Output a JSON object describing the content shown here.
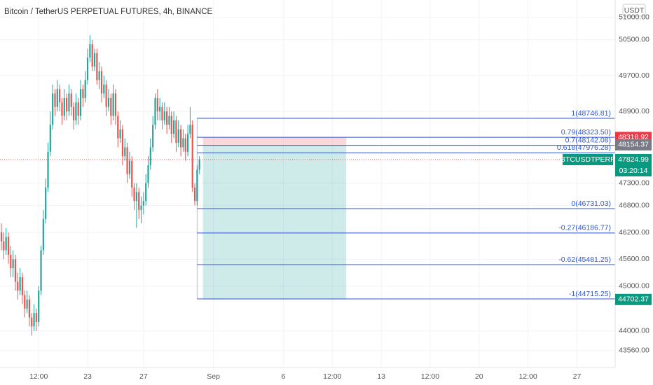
{
  "chart_data": {
    "type": "candlestick",
    "title": "Bitcoin / TetherUS PERPETUAL FUTURES, 4h, BINANCE",
    "currency": "USDT",
    "up_color": "#26a69a",
    "down_color": "#ef5350",
    "x": [
      0,
      1,
      2,
      3,
      4,
      5,
      6,
      7,
      8,
      9,
      10,
      11,
      12,
      13,
      14,
      15,
      16,
      17,
      18,
      19,
      20,
      21,
      22,
      23,
      24,
      25,
      26,
      27,
      28,
      29,
      30,
      31,
      32,
      33,
      34,
      35,
      36,
      37,
      38,
      39,
      40,
      41,
      42,
      43,
      44,
      45,
      46,
      47,
      48,
      49,
      50,
      51,
      52,
      53,
      54,
      55,
      56,
      57,
      58,
      59,
      60,
      61,
      62,
      63,
      64,
      65,
      66,
      67,
      68,
      69,
      70,
      71,
      72,
      73,
      74,
      75,
      76,
      77,
      78,
      79,
      80,
      81,
      82,
      83,
      84,
      85
    ],
    "open": [
      46200,
      46000,
      45800,
      46100,
      45700,
      45400,
      45600,
      45100,
      44900,
      45200,
      44800,
      44500,
      44700,
      44300,
      44100,
      44400,
      44200,
      44900,
      45800,
      46500,
      47200,
      48000,
      48600,
      49300,
      49000,
      49400,
      49100,
      48800,
      49200,
      48900,
      49300,
      49000,
      48700,
      49100,
      48800,
      49400,
      49200,
      49600,
      50100,
      50400,
      49900,
      50200,
      49600,
      49800,
      49300,
      49500,
      49000,
      49200,
      48800,
      49300,
      48800,
      48300,
      48500,
      47900,
      48100,
      47500,
      47800,
      47200,
      46900,
      47100,
      46700,
      46800,
      46900,
      47300,
      47700,
      48100,
      48600,
      49200,
      48900,
      49000,
      48700,
      48900,
      48600,
      48800,
      48400,
      48700,
      48200,
      48500,
      48100,
      48300,
      48000,
      48400,
      48600,
      47200,
      46900,
      47600
    ],
    "high": [
      46400,
      46200,
      46300,
      46200,
      45900,
      45800,
      45700,
      45300,
      45400,
      45300,
      44900,
      44900,
      44800,
      44400,
      44600,
      44500,
      45000,
      45900,
      46700,
      47400,
      48200,
      48900,
      49500,
      49400,
      49600,
      49500,
      49200,
      49400,
      49300,
      49500,
      49400,
      49100,
      49300,
      49200,
      49600,
      49500,
      49800,
      50300,
      50600,
      50500,
      50300,
      50300,
      50000,
      49900,
      49700,
      49600,
      49400,
      49300,
      49500,
      49400,
      48900,
      48700,
      48600,
      48300,
      48200,
      48000,
      47900,
      47300,
      47300,
      47200,
      47000,
      47100,
      47500,
      47900,
      48300,
      48800,
      49300,
      49400,
      49200,
      49100,
      49100,
      49000,
      49000,
      48900,
      48900,
      48800,
      48700,
      48600,
      48500,
      48400,
      48600,
      49000,
      48700,
      47300,
      47700,
      47900
    ],
    "low": [
      45800,
      45600,
      45700,
      45500,
      45200,
      45200,
      44900,
      44700,
      44800,
      44600,
      44300,
      44400,
      44100,
      43900,
      44000,
      44000,
      44100,
      44800,
      45700,
      46400,
      47100,
      47900,
      48500,
      48800,
      48900,
      48900,
      48600,
      48700,
      48700,
      48800,
      48800,
      48500,
      48600,
      48600,
      48700,
      49000,
      49100,
      49500,
      50000,
      49800,
      49800,
      49500,
      49400,
      49100,
      49200,
      48800,
      48900,
      48600,
      48700,
      48600,
      48100,
      48200,
      47700,
      47800,
      47300,
      47400,
      47000,
      46700,
      46300,
      46500,
      46400,
      46600,
      46800,
      47200,
      47600,
      48000,
      48500,
      48700,
      48700,
      48500,
      48600,
      48400,
      48500,
      48200,
      48300,
      48000,
      48100,
      47900,
      48000,
      47800,
      47900,
      48300,
      47100,
      46800,
      46800,
      47500
    ],
    "close": [
      46000,
      45800,
      46100,
      45700,
      45400,
      45600,
      45100,
      44900,
      45200,
      44800,
      44500,
      44700,
      44300,
      44100,
      44400,
      44200,
      44900,
      45800,
      46500,
      47200,
      48000,
      48600,
      49300,
      49000,
      49400,
      49100,
      48800,
      49200,
      48900,
      49300,
      49000,
      48700,
      49100,
      48800,
      49400,
      49200,
      49600,
      50100,
      50400,
      49900,
      50200,
      49600,
      49800,
      49300,
      49500,
      49000,
      49200,
      48800,
      49300,
      48800,
      48300,
      48500,
      47900,
      48100,
      47500,
      47800,
      47200,
      46900,
      47100,
      46700,
      46800,
      46900,
      47300,
      47700,
      48100,
      48600,
      49200,
      48900,
      49000,
      48700,
      48900,
      48600,
      48800,
      48400,
      48700,
      48200,
      48500,
      48100,
      48300,
      48000,
      48400,
      48600,
      47200,
      46900,
      47600,
      47825
    ],
    "xlim": [
      -0.6,
      263.4
    ],
    "xticks": [
      {
        "value": 16,
        "label": "12:00"
      },
      {
        "value": 37,
        "label": "23"
      },
      {
        "value": 61,
        "label": "27"
      },
      {
        "value": 91,
        "label": "Sep"
      },
      {
        "value": 121,
        "label": "6"
      },
      {
        "value": 142,
        "label": "12:00"
      },
      {
        "value": 163,
        "label": "13"
      },
      {
        "value": 184,
        "label": "12:00"
      },
      {
        "value": 205,
        "label": "20"
      },
      {
        "value": 226,
        "label": "12:00"
      },
      {
        "value": 247,
        "label": "27"
      }
    ],
    "ylim": [
      43184,
      51387
    ],
    "yticks": [
      {
        "value": 51000,
        "label": "51000.00"
      },
      {
        "value": 50500,
        "label": "50500.00"
      },
      {
        "value": 49700,
        "label": "49700.00"
      },
      {
        "value": 48900,
        "label": "48900.00"
      },
      {
        "value": 47300,
        "label": "47300.00"
      },
      {
        "value": 46800,
        "label": "46800.00"
      },
      {
        "value": 46200,
        "label": "46200.00"
      },
      {
        "value": 45600,
        "label": "45600.00"
      },
      {
        "value": 45000,
        "label": "45000.00"
      },
      {
        "value": 44000,
        "label": "44000.00"
      },
      {
        "value": 43560,
        "label": "43560.00"
      }
    ],
    "grid": true,
    "fib_color": "#3056d3",
    "fib_start": 84,
    "fib_levels": [
      {
        "value": 48746.81,
        "label": "1(48746.81)"
      },
      {
        "value": 48323.5,
        "label": "0.79(48323.50)"
      },
      {
        "value": 48142.08,
        "label": "0.7(48142.08)"
      },
      {
        "value": 47976.28,
        "label": "0.618(47976.28)"
      },
      {
        "value": 46731.03,
        "label": "0(46731.03)"
      },
      {
        "value": 46186.77,
        "label": "-0.27(46186.77)"
      },
      {
        "value": 45481.25,
        "label": "-0.62(45481.25)"
      },
      {
        "value": 44715.25,
        "label": "-1(44715.25)"
      }
    ],
    "position": {
      "x": [
        86.5,
        148
      ],
      "stop": 48318.92,
      "entry": 48154.37,
      "target": 44702.37,
      "stop_label": "48318.92",
      "entry_label": "48154.37",
      "target_label": "44702.37"
    },
    "last_price": 47824.99,
    "last_price_label": "47824.99",
    "symbol": "BTCUSDTPERP",
    "countdown": "03:20:14"
  }
}
